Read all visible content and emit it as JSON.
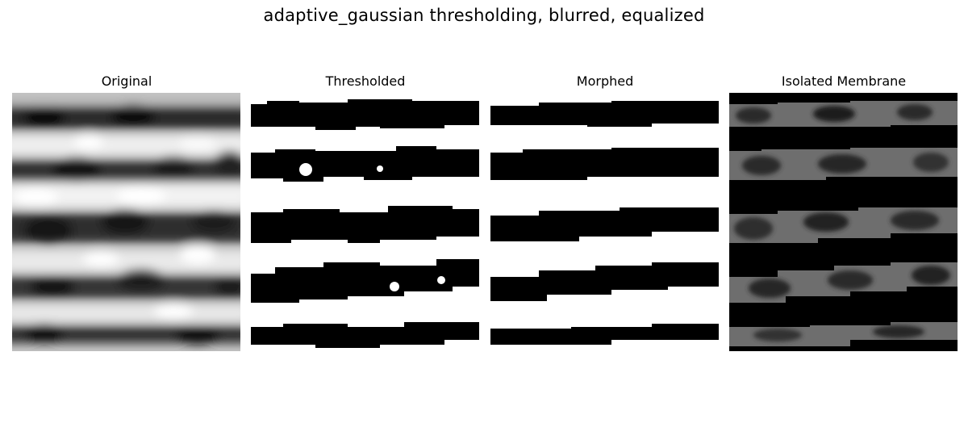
{
  "figure": {
    "title": "adaptive_gaussian thresholding, blurred, equalized"
  },
  "panels": [
    {
      "title": "Original",
      "colormap": "grayscale"
    },
    {
      "title": "Thresholded",
      "colormap": "binary"
    },
    {
      "title": "Morphed",
      "colormap": "binary"
    },
    {
      "title": "Isolated Membrane",
      "colormap": "grayscale on black"
    }
  ]
}
